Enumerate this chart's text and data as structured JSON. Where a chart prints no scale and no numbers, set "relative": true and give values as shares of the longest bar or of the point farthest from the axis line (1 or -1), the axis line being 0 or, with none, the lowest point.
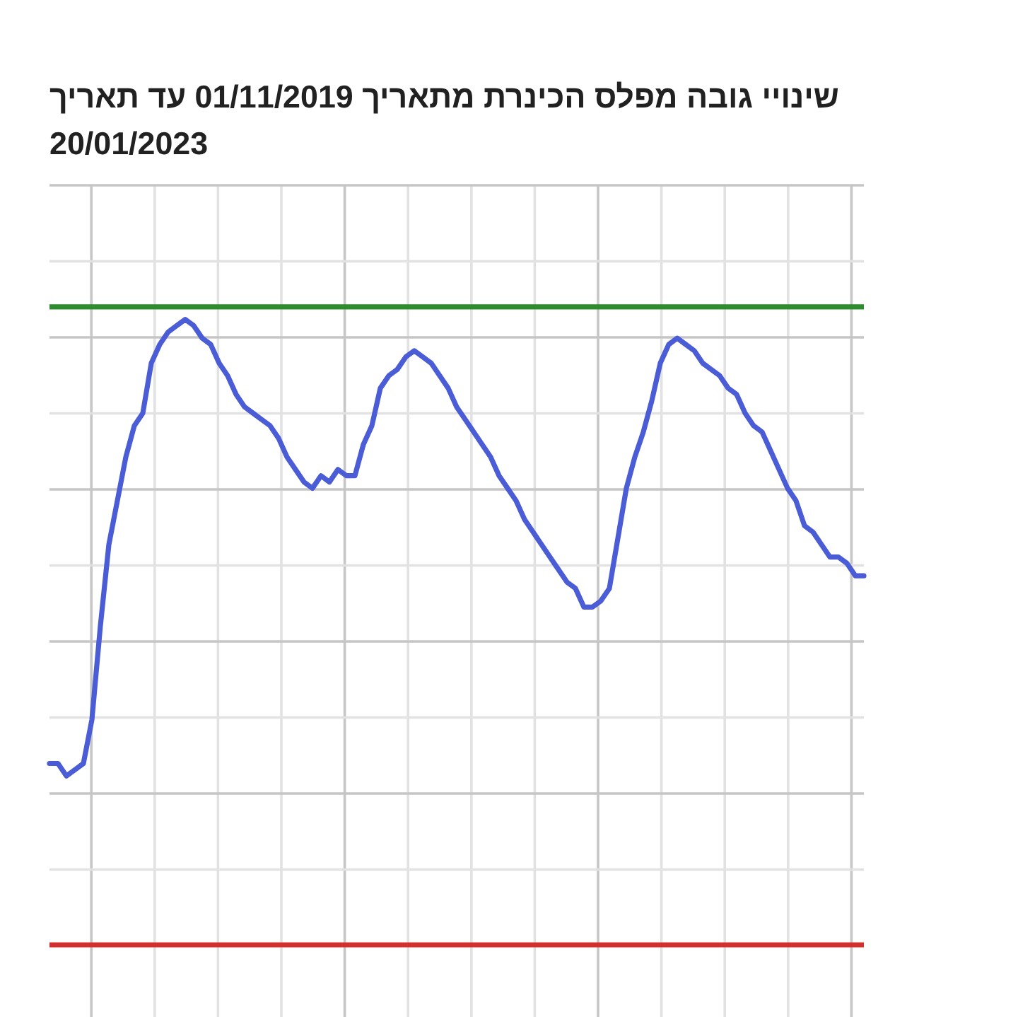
{
  "chart_data": {
    "type": "line",
    "title": "שינויי גובה מפלס הכינרת מתאריך 01/11/2019 עד תאריך 20/01/2023",
    "relative": true,
    "grid": true,
    "categories": [
      null,
      null,
      null,
      null,
      null,
      null,
      null,
      null,
      null,
      null,
      null,
      null,
      null,
      null,
      null,
      null,
      null,
      null,
      null,
      null,
      null,
      null,
      null,
      null,
      null,
      null,
      null,
      null,
      null,
      null,
      null,
      null,
      null,
      null,
      null,
      null,
      null,
      null,
      null,
      null,
      null,
      null,
      null,
      null,
      null,
      null,
      null,
      null,
      null,
      null,
      null,
      null,
      null,
      null,
      null,
      null,
      null,
      null,
      null,
      null,
      null,
      null,
      null,
      null,
      null,
      null,
      null,
      null,
      null,
      null,
      null,
      null,
      null,
      null,
      null,
      null,
      null,
      null,
      null,
      null,
      null,
      null,
      null,
      null,
      null,
      null,
      null,
      null,
      null,
      null,
      null,
      null,
      null,
      null,
      null,
      null,
      null
    ],
    "series": [
      {
        "color": "#4a5cd6",
        "values": [
          0.29,
          0.29,
          0.27,
          0.28,
          0.29,
          0.36,
          0.51,
          0.64,
          0.71,
          0.78,
          0.83,
          0.85,
          0.93,
          0.96,
          0.98,
          0.99,
          1.0,
          0.99,
          0.97,
          0.96,
          0.93,
          0.91,
          0.88,
          0.86,
          0.85,
          0.84,
          0.83,
          0.81,
          0.78,
          0.76,
          0.74,
          0.73,
          0.75,
          0.74,
          0.76,
          0.75,
          0.75,
          0.8,
          0.83,
          0.89,
          0.91,
          0.92,
          0.94,
          0.95,
          0.94,
          0.93,
          0.91,
          0.89,
          0.86,
          0.84,
          0.82,
          0.8,
          0.78,
          0.75,
          0.73,
          0.71,
          0.68,
          0.66,
          0.64,
          0.62,
          0.6,
          0.58,
          0.57,
          0.54,
          0.54,
          0.55,
          0.57,
          0.65,
          0.73,
          0.78,
          0.82,
          0.87,
          0.93,
          0.96,
          0.97,
          0.96,
          0.95,
          0.93,
          0.92,
          0.91,
          0.89,
          0.88,
          0.85,
          0.83,
          0.82,
          0.79,
          0.76,
          0.73,
          0.71,
          0.67,
          0.66,
          0.64,
          0.62,
          0.62,
          0.61,
          0.59,
          0.59
        ]
      }
    ],
    "ref_lines": [
      {
        "axis": "y",
        "value": 1.02,
        "color": "#2e8b2e"
      },
      {
        "axis": "y",
        "value": 0,
        "color": "#d32f2f"
      }
    ]
  }
}
